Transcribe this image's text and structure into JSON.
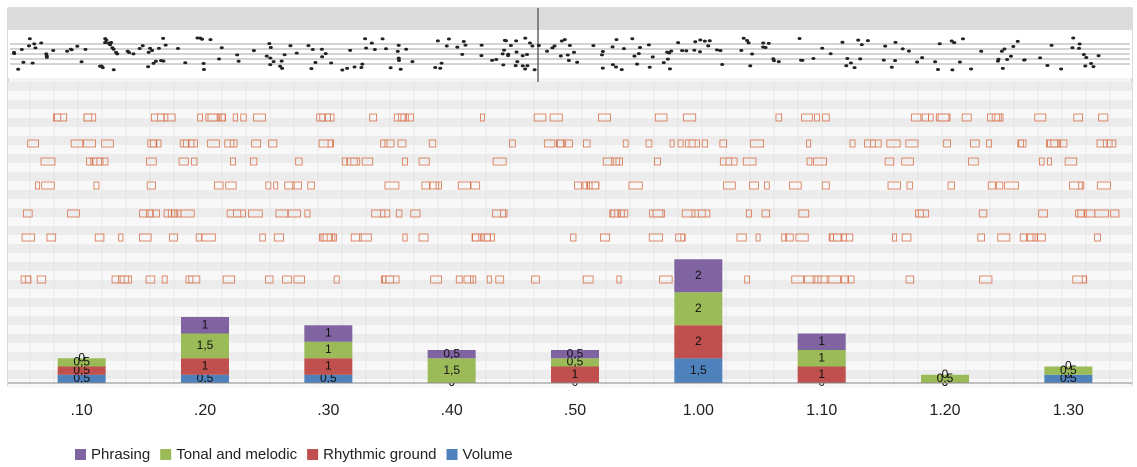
{
  "chart_data": {
    "type": "bar",
    "stacked": true,
    "categories": [
      ".10",
      ".20",
      ".30",
      ".40",
      ".50",
      "1.00",
      "1.10",
      "1.20",
      "1.30"
    ],
    "series": [
      {
        "name": "Volume",
        "color": "#4f81bd",
        "values": [
          0.5,
          0.5,
          0.5,
          0,
          0,
          1.5,
          0,
          0,
          0.5
        ],
        "value_labels": [
          "0,5",
          "0,5",
          "0,5",
          "0",
          "0",
          "1,5",
          "0",
          "0",
          "0,5"
        ]
      },
      {
        "name": "Rhythmic ground",
        "color": "#c0504d",
        "values": [
          0.5,
          1,
          1,
          0,
          1,
          2,
          1,
          0,
          0
        ],
        "value_labels": [
          "0,5",
          "1",
          "1",
          "0",
          "1",
          "2",
          "1",
          "0",
          "0"
        ]
      },
      {
        "name": "Tonal and melodic",
        "color": "#9bbb59",
        "values": [
          0.5,
          1.5,
          1,
          1.5,
          0.5,
          2,
          1,
          0.5,
          0.5
        ],
        "value_labels": [
          "0,5",
          "1,5",
          "1",
          "1,5",
          "0,5",
          "2",
          "1",
          "0,5",
          "0,5"
        ]
      },
      {
        "name": "Phrasing",
        "color": "#8064a2",
        "values": [
          0,
          1,
          1,
          0.5,
          0.5,
          2,
          1,
          0,
          0
        ],
        "value_labels": [
          "0",
          "1",
          "1",
          "0,5",
          "0,5",
          "2",
          "1",
          "0",
          "0"
        ]
      }
    ]
  }
}
